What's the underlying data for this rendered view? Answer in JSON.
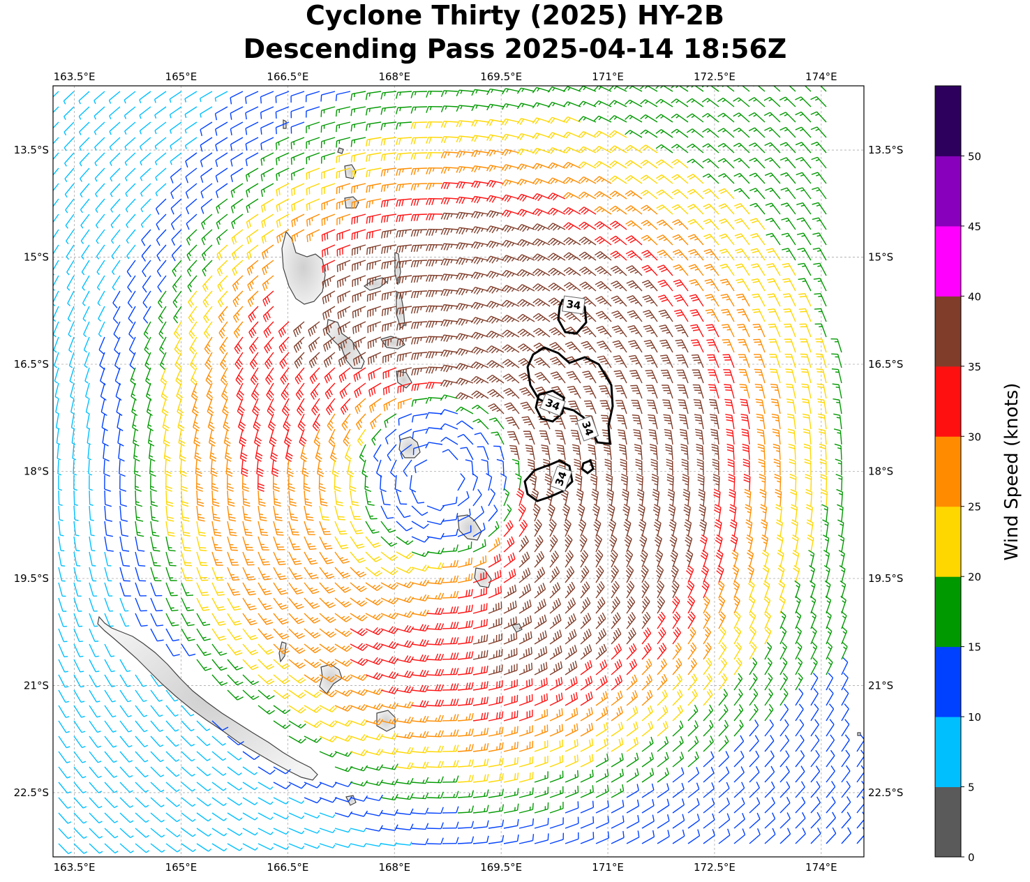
{
  "title": {
    "line1": "Cyclone Thirty (2025) HY-2B",
    "line2": "Descending Pass 2025-04-14 18:56Z"
  },
  "map": {
    "lon_range": [
      163.2,
      174.6
    ],
    "lat_range": [
      -23.4,
      -12.6
    ],
    "lon_ticks": [
      {
        "value": 163.5,
        "label": "163.5°E"
      },
      {
        "value": 165.0,
        "label": "165°E"
      },
      {
        "value": 166.5,
        "label": "166.5°E"
      },
      {
        "value": 168.0,
        "label": "168°E"
      },
      {
        "value": 169.5,
        "label": "169.5°E"
      },
      {
        "value": 171.0,
        "label": "171°E"
      },
      {
        "value": 172.5,
        "label": "172.5°E"
      },
      {
        "value": 174.0,
        "label": "174°E"
      }
    ],
    "lat_ticks": [
      {
        "value": -13.5,
        "label": "13.5°S"
      },
      {
        "value": -15.0,
        "label": "15°S"
      },
      {
        "value": -16.5,
        "label": "16.5°S"
      },
      {
        "value": -18.0,
        "label": "18°S"
      },
      {
        "value": -19.5,
        "label": "19.5°S"
      },
      {
        "value": -21.0,
        "label": "21°S"
      },
      {
        "value": -22.5,
        "label": "22.5°S"
      }
    ],
    "gridlines": true,
    "circulation_center": {
      "lon": 168.6,
      "lat": -18.1
    },
    "contour_label": "34",
    "contour_color": "#000000"
  },
  "colorbar": {
    "label": "Wind Speed (knots)",
    "bins": [
      {
        "min": 0,
        "max": 5,
        "color": "#5a5a5a"
      },
      {
        "min": 5,
        "max": 10,
        "color": "#00bfff"
      },
      {
        "min": 10,
        "max": 15,
        "color": "#0040ff"
      },
      {
        "min": 15,
        "max": 20,
        "color": "#009900"
      },
      {
        "min": 20,
        "max": 25,
        "color": "#ffd700"
      },
      {
        "min": 25,
        "max": 30,
        "color": "#ff8c00"
      },
      {
        "min": 30,
        "max": 35,
        "color": "#ff1010"
      },
      {
        "min": 35,
        "max": 40,
        "color": "#803d2a"
      },
      {
        "min": 40,
        "max": 45,
        "color": "#ff00ff"
      },
      {
        "min": 45,
        "max": 50,
        "color": "#8800bb"
      },
      {
        "min": 50,
        "max": 55,
        "color": "#2e005e"
      }
    ],
    "tick_labels": [
      "0",
      "5",
      "10",
      "15",
      "20",
      "25",
      "30",
      "35",
      "40",
      "45",
      "50"
    ]
  },
  "land_color": "#e4e4e4",
  "coast_color": "#404040"
}
